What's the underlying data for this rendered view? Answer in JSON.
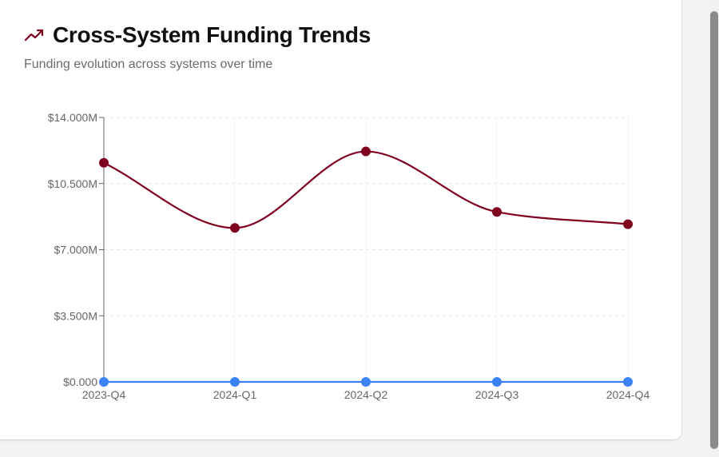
{
  "header": {
    "title": "Cross-System Funding Trends",
    "subtitle": "Funding evolution across systems over time",
    "icon": "trending-up-icon"
  },
  "colors": {
    "series_primary": "#800020",
    "series_secondary": "#3b82f6",
    "grid": "#e5e7eb",
    "axis": "#666666"
  },
  "chart_data": {
    "type": "line",
    "title": "Cross-System Funding Trends",
    "subtitle": "Funding evolution across systems over time",
    "xlabel": "",
    "ylabel": "",
    "categories": [
      "2023-Q4",
      "2024-Q1",
      "2024-Q2",
      "2024-Q3",
      "2024-Q4"
    ],
    "yticks": [
      "$0.000",
      "$3.500M",
      "$7.000M",
      "$10.500M",
      "$14.000M"
    ],
    "ylim": [
      0,
      14
    ],
    "y_unit": "M",
    "grid": true,
    "legend": "none",
    "series": [
      {
        "values": [
          11.6,
          8.15,
          12.2,
          9.0,
          8.35
        ],
        "color": "#800020"
      },
      {
        "values": [
          0,
          0,
          0,
          0,
          0
        ],
        "color": "#3b82f6"
      }
    ]
  }
}
